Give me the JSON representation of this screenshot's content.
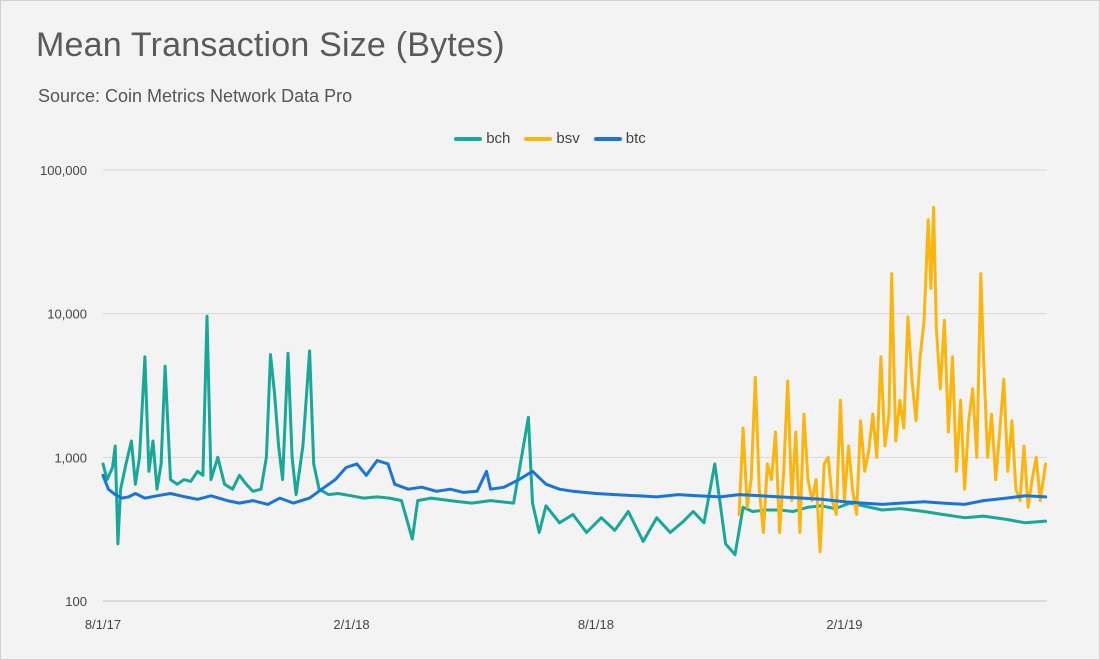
{
  "title": "Mean Transaction Size (Bytes)",
  "subtitle": "Source: Coin Metrics Network Data Pro",
  "chart_data": {
    "type": "line",
    "title": "Mean Transaction Size (Bytes)",
    "subtitle": "Source: Coin Metrics Network Data Pro",
    "yscale": "log",
    "ylim": [
      100,
      100000
    ],
    "yticks": [
      100,
      1000,
      10000,
      100000
    ],
    "ytick_labels": [
      "100",
      "1,000",
      "10,000",
      "100,000"
    ],
    "xlim": [
      "2017-08-01",
      "2019-07-01"
    ],
    "xticks": [
      "2017-08-01",
      "2018-02-01",
      "2018-08-01",
      "2019-02-01"
    ],
    "xtick_labels": [
      "8/1/17",
      "2/1/18",
      "8/1/18",
      "2/1/19"
    ],
    "grid": true,
    "legend_position": "top-center",
    "series": [
      {
        "name": "bch",
        "color": "#17a89a",
        "points": [
          [
            "2017-08-01",
            900
          ],
          [
            "2017-08-04",
            700
          ],
          [
            "2017-08-08",
            850
          ],
          [
            "2017-08-10",
            1200
          ],
          [
            "2017-08-12",
            250
          ],
          [
            "2017-08-14",
            600
          ],
          [
            "2017-08-18",
            900
          ],
          [
            "2017-08-22",
            1300
          ],
          [
            "2017-08-25",
            650
          ],
          [
            "2017-08-28",
            1000
          ],
          [
            "2017-09-01",
            5000
          ],
          [
            "2017-09-04",
            800
          ],
          [
            "2017-09-07",
            1300
          ],
          [
            "2017-09-10",
            600
          ],
          [
            "2017-09-13",
            900
          ],
          [
            "2017-09-16",
            4300
          ],
          [
            "2017-09-20",
            700
          ],
          [
            "2017-09-25",
            650
          ],
          [
            "2017-09-30",
            700
          ],
          [
            "2017-10-05",
            680
          ],
          [
            "2017-10-10",
            800
          ],
          [
            "2017-10-14",
            750
          ],
          [
            "2017-10-17",
            9600
          ],
          [
            "2017-10-20",
            700
          ],
          [
            "2017-10-25",
            1000
          ],
          [
            "2017-10-30",
            650
          ],
          [
            "2017-11-05",
            600
          ],
          [
            "2017-11-10",
            750
          ],
          [
            "2017-11-15",
            650
          ],
          [
            "2017-11-20",
            580
          ],
          [
            "2017-11-26",
            600
          ],
          [
            "2017-11-30",
            1000
          ],
          [
            "2017-12-03",
            5200
          ],
          [
            "2017-12-06",
            2800
          ],
          [
            "2017-12-09",
            1200
          ],
          [
            "2017-12-12",
            700
          ],
          [
            "2017-12-16",
            5300
          ],
          [
            "2017-12-19",
            1000
          ],
          [
            "2017-12-22",
            550
          ],
          [
            "2017-12-27",
            1200
          ],
          [
            "2018-01-01",
            5500
          ],
          [
            "2018-01-04",
            900
          ],
          [
            "2018-01-08",
            600
          ],
          [
            "2018-01-15",
            550
          ],
          [
            "2018-01-22",
            560
          ],
          [
            "2018-02-01",
            540
          ],
          [
            "2018-02-10",
            520
          ],
          [
            "2018-02-20",
            530
          ],
          [
            "2018-03-01",
            520
          ],
          [
            "2018-03-10",
            500
          ],
          [
            "2018-03-18",
            270
          ],
          [
            "2018-03-22",
            500
          ],
          [
            "2018-04-01",
            520
          ],
          [
            "2018-04-15",
            500
          ],
          [
            "2018-05-01",
            480
          ],
          [
            "2018-05-15",
            500
          ],
          [
            "2018-06-01",
            480
          ],
          [
            "2018-06-12",
            1900
          ],
          [
            "2018-06-15",
            480
          ],
          [
            "2018-06-20",
            300
          ],
          [
            "2018-06-25",
            460
          ],
          [
            "2018-07-05",
            350
          ],
          [
            "2018-07-15",
            400
          ],
          [
            "2018-07-25",
            300
          ],
          [
            "2018-08-05",
            380
          ],
          [
            "2018-08-15",
            310
          ],
          [
            "2018-08-25",
            420
          ],
          [
            "2018-09-05",
            260
          ],
          [
            "2018-09-15",
            380
          ],
          [
            "2018-09-25",
            300
          ],
          [
            "2018-10-05",
            360
          ],
          [
            "2018-10-12",
            420
          ],
          [
            "2018-10-20",
            350
          ],
          [
            "2018-10-28",
            900
          ],
          [
            "2018-11-05",
            250
          ],
          [
            "2018-11-12",
            210
          ],
          [
            "2018-11-18",
            450
          ],
          [
            "2018-11-25",
            420
          ],
          [
            "2018-12-05",
            430
          ],
          [
            "2018-12-15",
            430
          ],
          [
            "2018-12-25",
            420
          ],
          [
            "2019-01-05",
            450
          ],
          [
            "2019-01-15",
            460
          ],
          [
            "2019-01-25",
            440
          ],
          [
            "2019-02-05",
            480
          ],
          [
            "2019-02-15",
            460
          ],
          [
            "2019-03-01",
            430
          ],
          [
            "2019-03-15",
            440
          ],
          [
            "2019-04-01",
            420
          ],
          [
            "2019-04-15",
            400
          ],
          [
            "2019-05-01",
            380
          ],
          [
            "2019-05-15",
            390
          ],
          [
            "2019-06-01",
            370
          ],
          [
            "2019-06-15",
            350
          ],
          [
            "2019-06-30",
            360
          ]
        ]
      },
      {
        "name": "bsv",
        "color": "#fbb50f",
        "points": [
          [
            "2018-11-15",
            400
          ],
          [
            "2018-11-18",
            1600
          ],
          [
            "2018-11-21",
            450
          ],
          [
            "2018-11-24",
            700
          ],
          [
            "2018-11-27",
            3600
          ],
          [
            "2018-11-30",
            600
          ],
          [
            "2018-12-03",
            300
          ],
          [
            "2018-12-06",
            900
          ],
          [
            "2018-12-09",
            700
          ],
          [
            "2018-12-12",
            1500
          ],
          [
            "2018-12-15",
            300
          ],
          [
            "2018-12-18",
            800
          ],
          [
            "2018-12-21",
            3400
          ],
          [
            "2018-12-24",
            500
          ],
          [
            "2018-12-27",
            1500
          ],
          [
            "2018-12-30",
            300
          ],
          [
            "2019-01-02",
            2000
          ],
          [
            "2019-01-05",
            700
          ],
          [
            "2019-01-08",
            500
          ],
          [
            "2019-01-11",
            700
          ],
          [
            "2019-01-14",
            220
          ],
          [
            "2019-01-17",
            900
          ],
          [
            "2019-01-20",
            1000
          ],
          [
            "2019-01-23",
            500
          ],
          [
            "2019-01-26",
            400
          ],
          [
            "2019-01-29",
            2500
          ],
          [
            "2019-02-01",
            500
          ],
          [
            "2019-02-04",
            1200
          ],
          [
            "2019-02-07",
            600
          ],
          [
            "2019-02-10",
            400
          ],
          [
            "2019-02-13",
            1800
          ],
          [
            "2019-02-16",
            800
          ],
          [
            "2019-02-19",
            1100
          ],
          [
            "2019-02-22",
            2000
          ],
          [
            "2019-02-25",
            1000
          ],
          [
            "2019-02-28",
            5000
          ],
          [
            "2019-03-03",
            1200
          ],
          [
            "2019-03-06",
            2000
          ],
          [
            "2019-03-08",
            19000
          ],
          [
            "2019-03-11",
            1300
          ],
          [
            "2019-03-14",
            2500
          ],
          [
            "2019-03-17",
            1600
          ],
          [
            "2019-03-20",
            9500
          ],
          [
            "2019-03-23",
            3500
          ],
          [
            "2019-03-26",
            1800
          ],
          [
            "2019-03-29",
            5000
          ],
          [
            "2019-04-01",
            9000
          ],
          [
            "2019-04-04",
            45000
          ],
          [
            "2019-04-06",
            15000
          ],
          [
            "2019-04-08",
            55000
          ],
          [
            "2019-04-10",
            8000
          ],
          [
            "2019-04-13",
            3000
          ],
          [
            "2019-04-16",
            9000
          ],
          [
            "2019-04-19",
            1500
          ],
          [
            "2019-04-22",
            5000
          ],
          [
            "2019-04-25",
            800
          ],
          [
            "2019-04-28",
            2500
          ],
          [
            "2019-05-01",
            600
          ],
          [
            "2019-05-04",
            1800
          ],
          [
            "2019-05-07",
            3000
          ],
          [
            "2019-05-10",
            1000
          ],
          [
            "2019-05-13",
            19000
          ],
          [
            "2019-05-15",
            5000
          ],
          [
            "2019-05-18",
            1000
          ],
          [
            "2019-05-21",
            2000
          ],
          [
            "2019-05-24",
            700
          ],
          [
            "2019-05-27",
            1500
          ],
          [
            "2019-05-30",
            3500
          ],
          [
            "2019-06-02",
            800
          ],
          [
            "2019-06-05",
            1800
          ],
          [
            "2019-06-08",
            600
          ],
          [
            "2019-06-11",
            500
          ],
          [
            "2019-06-14",
            1200
          ],
          [
            "2019-06-17",
            450
          ],
          [
            "2019-06-20",
            700
          ],
          [
            "2019-06-23",
            1000
          ],
          [
            "2019-06-26",
            500
          ],
          [
            "2019-06-30",
            900
          ]
        ]
      },
      {
        "name": "btc",
        "color": "#1a75d8",
        "points": [
          [
            "2017-08-01",
            750
          ],
          [
            "2017-08-05",
            600
          ],
          [
            "2017-08-10",
            550
          ],
          [
            "2017-08-15",
            520
          ],
          [
            "2017-08-20",
            530
          ],
          [
            "2017-08-25",
            560
          ],
          [
            "2017-09-01",
            520
          ],
          [
            "2017-09-10",
            540
          ],
          [
            "2017-09-20",
            560
          ],
          [
            "2017-10-01",
            530
          ],
          [
            "2017-10-10",
            510
          ],
          [
            "2017-10-20",
            540
          ],
          [
            "2017-11-01",
            500
          ],
          [
            "2017-11-10",
            480
          ],
          [
            "2017-11-20",
            500
          ],
          [
            "2017-12-01",
            470
          ],
          [
            "2017-12-10",
            520
          ],
          [
            "2017-12-20",
            480
          ],
          [
            "2018-01-01",
            520
          ],
          [
            "2018-01-10",
            600
          ],
          [
            "2018-01-20",
            700
          ],
          [
            "2018-01-28",
            850
          ],
          [
            "2018-02-05",
            900
          ],
          [
            "2018-02-12",
            750
          ],
          [
            "2018-02-20",
            950
          ],
          [
            "2018-02-28",
            900
          ],
          [
            "2018-03-05",
            650
          ],
          [
            "2018-03-15",
            600
          ],
          [
            "2018-03-25",
            620
          ],
          [
            "2018-04-05",
            580
          ],
          [
            "2018-04-15",
            600
          ],
          [
            "2018-04-25",
            570
          ],
          [
            "2018-05-05",
            580
          ],
          [
            "2018-05-12",
            800
          ],
          [
            "2018-05-15",
            600
          ],
          [
            "2018-05-25",
            620
          ],
          [
            "2018-06-05",
            700
          ],
          [
            "2018-06-15",
            800
          ],
          [
            "2018-06-25",
            650
          ],
          [
            "2018-07-05",
            600
          ],
          [
            "2018-07-15",
            580
          ],
          [
            "2018-08-01",
            560
          ],
          [
            "2018-08-15",
            550
          ],
          [
            "2018-09-01",
            540
          ],
          [
            "2018-09-15",
            530
          ],
          [
            "2018-10-01",
            550
          ],
          [
            "2018-10-15",
            540
          ],
          [
            "2018-11-01",
            530
          ],
          [
            "2018-11-15",
            550
          ],
          [
            "2018-12-01",
            540
          ],
          [
            "2018-12-15",
            530
          ],
          [
            "2019-01-01",
            520
          ],
          [
            "2019-01-15",
            510
          ],
          [
            "2019-02-01",
            490
          ],
          [
            "2019-02-15",
            480
          ],
          [
            "2019-03-01",
            470
          ],
          [
            "2019-03-15",
            480
          ],
          [
            "2019-04-01",
            490
          ],
          [
            "2019-04-15",
            480
          ],
          [
            "2019-05-01",
            470
          ],
          [
            "2019-05-15",
            500
          ],
          [
            "2019-06-01",
            520
          ],
          [
            "2019-06-15",
            540
          ],
          [
            "2019-06-30",
            530
          ]
        ]
      }
    ]
  }
}
